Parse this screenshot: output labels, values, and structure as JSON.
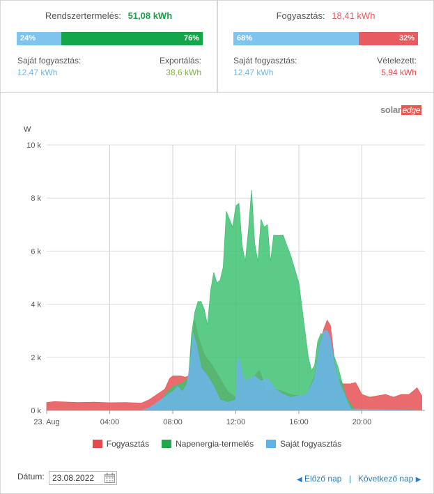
{
  "production": {
    "title": "Rendszertermelés:",
    "total": "51,08 kWh",
    "self_pct": "24%",
    "export_pct": "76%",
    "self_fraction": 0.24,
    "self_label": "Saját fogyasztás:",
    "self_value": "12,47 kWh",
    "export_label": "Exportálás:",
    "export_value": "38,6 kWh"
  },
  "consumption": {
    "title": "Fogyasztás:",
    "total": "18,41 kWh",
    "self_pct": "68%",
    "import_pct": "32%",
    "self_fraction": 0.68,
    "self_label": "Saját fogyasztás:",
    "self_value": "12,47 kWh",
    "import_label": "Vételezett:",
    "import_value": "5,94 kWh"
  },
  "logo": {
    "solar": "solar",
    "edge": "edge"
  },
  "colors": {
    "production": "#1aa543",
    "consumption": "#e8585a",
    "self": "#7fc4ef",
    "export_text": "#7cb342",
    "consumption_area": "#e85b5e",
    "production_area": "#3fc273",
    "self_area": "#6ab5e5"
  },
  "chart_data": {
    "type": "area",
    "ylabel": "W",
    "ylim": [
      0,
      10000
    ],
    "yticks": [
      0,
      2000,
      4000,
      6000,
      8000,
      10000
    ],
    "ytick_labels": [
      "0 k",
      "2 k",
      "4 k",
      "6 k",
      "8 k",
      "10 k"
    ],
    "xlim": [
      0,
      24
    ],
    "xticks": [
      0,
      4,
      8,
      12,
      16,
      20
    ],
    "xtick_labels": [
      "23. Aug",
      "04:00",
      "08:00",
      "12:00",
      "16:00",
      "20:00"
    ],
    "grid": true,
    "legend": "bottom",
    "series": [
      {
        "name": "Fogyasztás",
        "color": "#e85b5e",
        "x": [
          0,
          0.5,
          1,
          2,
          3,
          4,
          5,
          6,
          6.5,
          7,
          7.5,
          7.8,
          8.0,
          8.5,
          8.8,
          9.0,
          9.2,
          9.4,
          9.6,
          10,
          10.5,
          11,
          11.5,
          12,
          12.1,
          12.2,
          12.4,
          12.6,
          13,
          13.5,
          14,
          14.5,
          15,
          15.5,
          16,
          16.5,
          17,
          17.3,
          17.6,
          17.8,
          18,
          18.3,
          18.5,
          18.8,
          19,
          19.3,
          19.6,
          20,
          20.5,
          21,
          21.5,
          22,
          22.5,
          23,
          23.5,
          23.8
        ],
        "y": [
          300,
          330,
          320,
          300,
          310,
          290,
          300,
          270,
          400,
          600,
          800,
          1200,
          1300,
          1300,
          1250,
          1300,
          2500,
          3400,
          2800,
          2100,
          1700,
          1200,
          700,
          500,
          1200,
          2000,
          1400,
          1100,
          1200,
          1500,
          700,
          800,
          700,
          600,
          550,
          600,
          1300,
          2500,
          3100,
          3400,
          3200,
          1700,
          1200,
          1000,
          1000,
          1000,
          1050,
          600,
          500,
          550,
          600,
          500,
          600,
          600,
          850,
          550
        ]
      },
      {
        "name": "Napenergia-termelés",
        "color": "#3fc273",
        "x": [
          0,
          6.5,
          7,
          7.5,
          7.8,
          8.0,
          8.5,
          9.0,
          9.2,
          9.4,
          9.6,
          9.8,
          10.0,
          10.2,
          10.4,
          10.6,
          10.8,
          11.0,
          11.2,
          11.4,
          11.6,
          11.8,
          12.0,
          12.2,
          12.4,
          12.6,
          12.8,
          13.0,
          13.2,
          13.4,
          13.6,
          13.8,
          14.0,
          14.2,
          14.4,
          14.6,
          14.8,
          15.0,
          15.5,
          16.0,
          16.3,
          16.6,
          16.8,
          17.0,
          17.2,
          17.4,
          17.6,
          17.8,
          18.0,
          18.2,
          18.5,
          18.8,
          19.0,
          19.2,
          19.5,
          24
        ],
        "y": [
          0,
          0,
          100,
          600,
          800,
          900,
          1000,
          1200,
          2900,
          3700,
          4100,
          4100,
          3800,
          3200,
          4500,
          5200,
          4800,
          4900,
          5400,
          7500,
          7200,
          6900,
          7700,
          7800,
          6200,
          5600,
          6800,
          8300,
          6300,
          5600,
          7200,
          6900,
          7000,
          5600,
          6600,
          6600,
          6600,
          6600,
          5800,
          4800,
          3400,
          2000,
          1500,
          1700,
          2600,
          2900,
          2800,
          2200,
          2600,
          2100,
          1600,
          900,
          500,
          300,
          50,
          0
        ]
      },
      {
        "name": "Saját fogyasztás",
        "color": "#6ab5e5",
        "x": [
          0,
          6,
          6.5,
          7,
          7.5,
          7.8,
          8.0,
          8.3,
          8.6,
          8.9,
          9.1,
          9.3,
          9.5,
          9.8,
          10.2,
          10.6,
          11.0,
          11.5,
          12.0,
          12.1,
          12.2,
          12.4,
          12.6,
          12.9,
          13.2,
          13.6,
          14.0,
          14.5,
          15.0,
          15.5,
          16.0,
          16.5,
          17.0,
          17.3,
          17.6,
          17.8,
          18.0,
          18.3,
          18.6,
          18.9,
          19.1,
          19.3,
          24
        ],
        "y": [
          0,
          0,
          100,
          300,
          500,
          650,
          700,
          900,
          700,
          1000,
          1700,
          2900,
          2500,
          1600,
          1300,
          900,
          400,
          300,
          400,
          1800,
          2000,
          1400,
          1100,
          1200,
          1300,
          1100,
          1200,
          800,
          600,
          500,
          550,
          600,
          1200,
          2400,
          3000,
          3000,
          2700,
          1600,
          1000,
          600,
          300,
          50,
          0
        ]
      }
    ]
  },
  "legend_items": [
    {
      "label": "Fogyasztás",
      "color": "#e8484b"
    },
    {
      "label": "Napenergia-termelés",
      "color": "#22a84a"
    },
    {
      "label": "Saját fogyasztás",
      "color": "#5eb2ea"
    }
  ],
  "footer": {
    "date_label": "Dátum:",
    "date_value": "23.08.2022",
    "prev_label": "Előző nap",
    "next_label": "Következő nap",
    "separator": "|"
  }
}
